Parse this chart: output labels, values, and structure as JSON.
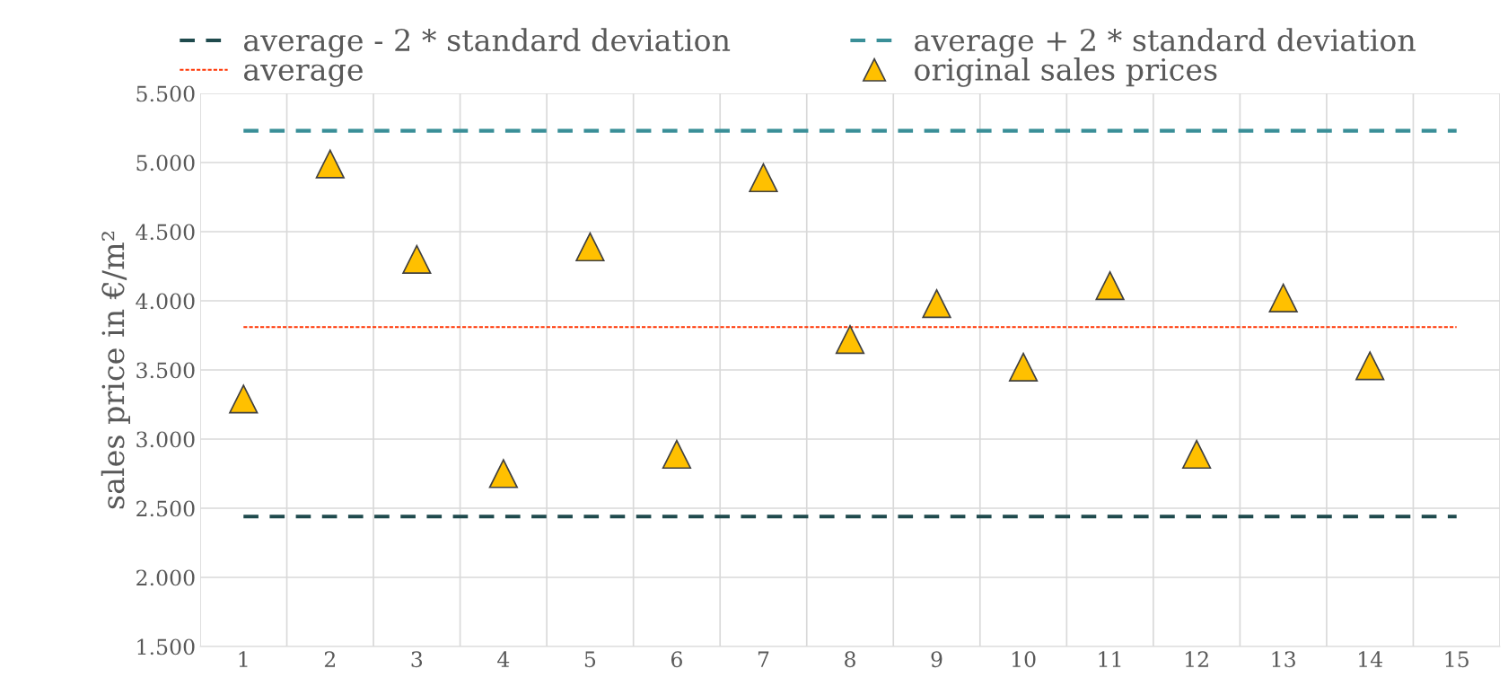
{
  "chart_data": {
    "type": "scatter",
    "ylabel": "sales price in €/m²",
    "categories": [
      "1",
      "2",
      "3",
      "4",
      "5",
      "6",
      "7",
      "8",
      "9",
      "10",
      "11",
      "12",
      "13",
      "14",
      "15"
    ],
    "series": [
      {
        "name": "average - 2 * standard deviation",
        "type": "line",
        "line_style": "dashed",
        "color": "#1f4a4d",
        "values": [
          2440,
          2440,
          2440,
          2440,
          2440,
          2440,
          2440,
          2440,
          2440,
          2440,
          2440,
          2440,
          2440,
          2440,
          2440
        ]
      },
      {
        "name": "average + 2 * standard deviation",
        "type": "line",
        "line_style": "dashed",
        "color": "#3a8f98",
        "values": [
          5230,
          5230,
          5230,
          5230,
          5230,
          5230,
          5230,
          5230,
          5230,
          5230,
          5230,
          5230,
          5230,
          5230,
          5230
        ]
      },
      {
        "name": "average",
        "type": "line",
        "line_style": "dotted",
        "color": "#ff3300",
        "values": [
          3810,
          3810,
          3810,
          3810,
          3810,
          3810,
          3810,
          3810,
          3810,
          3810,
          3810,
          3810,
          3810,
          3810,
          3810
        ]
      },
      {
        "name": "original sales prices",
        "marker": "triangle",
        "color": "#ffc000",
        "values": [
          3290,
          4990,
          4300,
          2750,
          4390,
          2890,
          4890,
          3720,
          3980,
          3520,
          4110,
          2890,
          4020,
          3530,
          null
        ]
      }
    ],
    "ylim": [
      1500,
      5500
    ],
    "yticks": [
      {
        "value": 1500,
        "label": "1.500"
      },
      {
        "value": 2000,
        "label": "2.000"
      },
      {
        "value": 2500,
        "label": "2.500"
      },
      {
        "value": 3000,
        "label": "3.000"
      },
      {
        "value": 3500,
        "label": "3.500"
      },
      {
        "value": 4000,
        "label": "4.000"
      },
      {
        "value": 4500,
        "label": "4.500"
      },
      {
        "value": 5000,
        "label": "5.000"
      },
      {
        "value": 5500,
        "label": "5.500"
      }
    ],
    "grid": true,
    "legend": "top"
  }
}
